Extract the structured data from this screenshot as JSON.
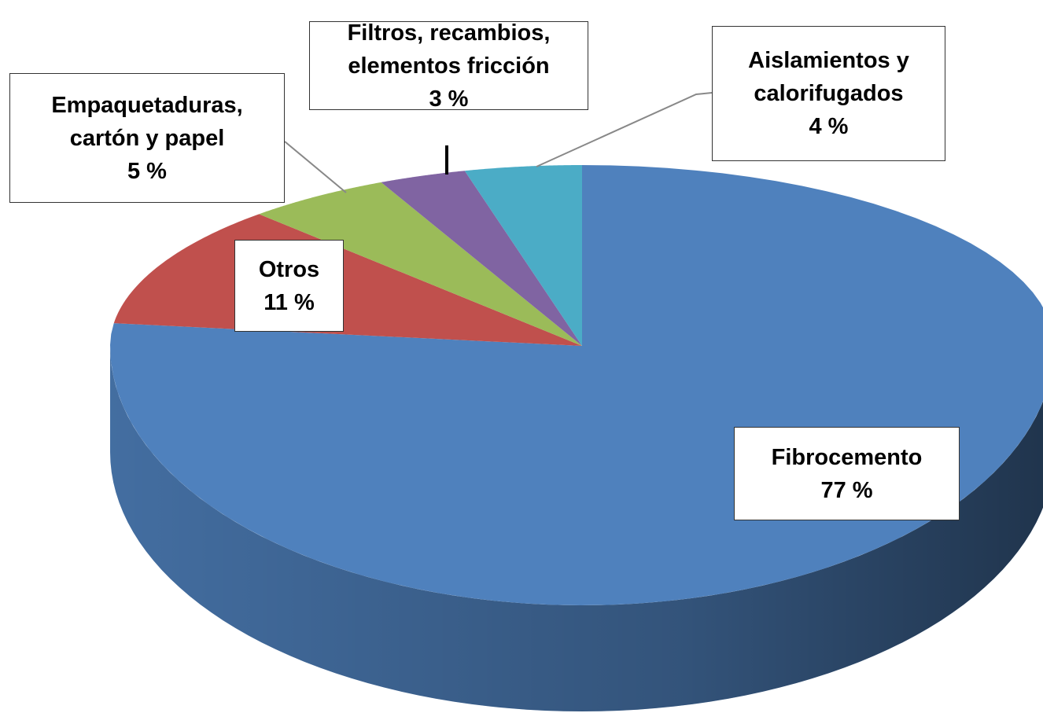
{
  "chart_data": {
    "type": "pie",
    "categories": [
      "Fibrocemento",
      "Otros",
      "Empaquetaduras, cartón y papel",
      "Filtros, recambios, elementos fricción",
      "Aislamientos y calorifugados"
    ],
    "values": [
      77,
      11,
      5,
      3,
      4
    ],
    "value_labels": [
      "77 %",
      "11 %",
      "5 %",
      "3 %",
      "4 %"
    ],
    "colors": [
      "#4f81bd",
      "#c0504d",
      "#9bbb59",
      "#8064a2",
      "#4bacc6"
    ]
  }
}
